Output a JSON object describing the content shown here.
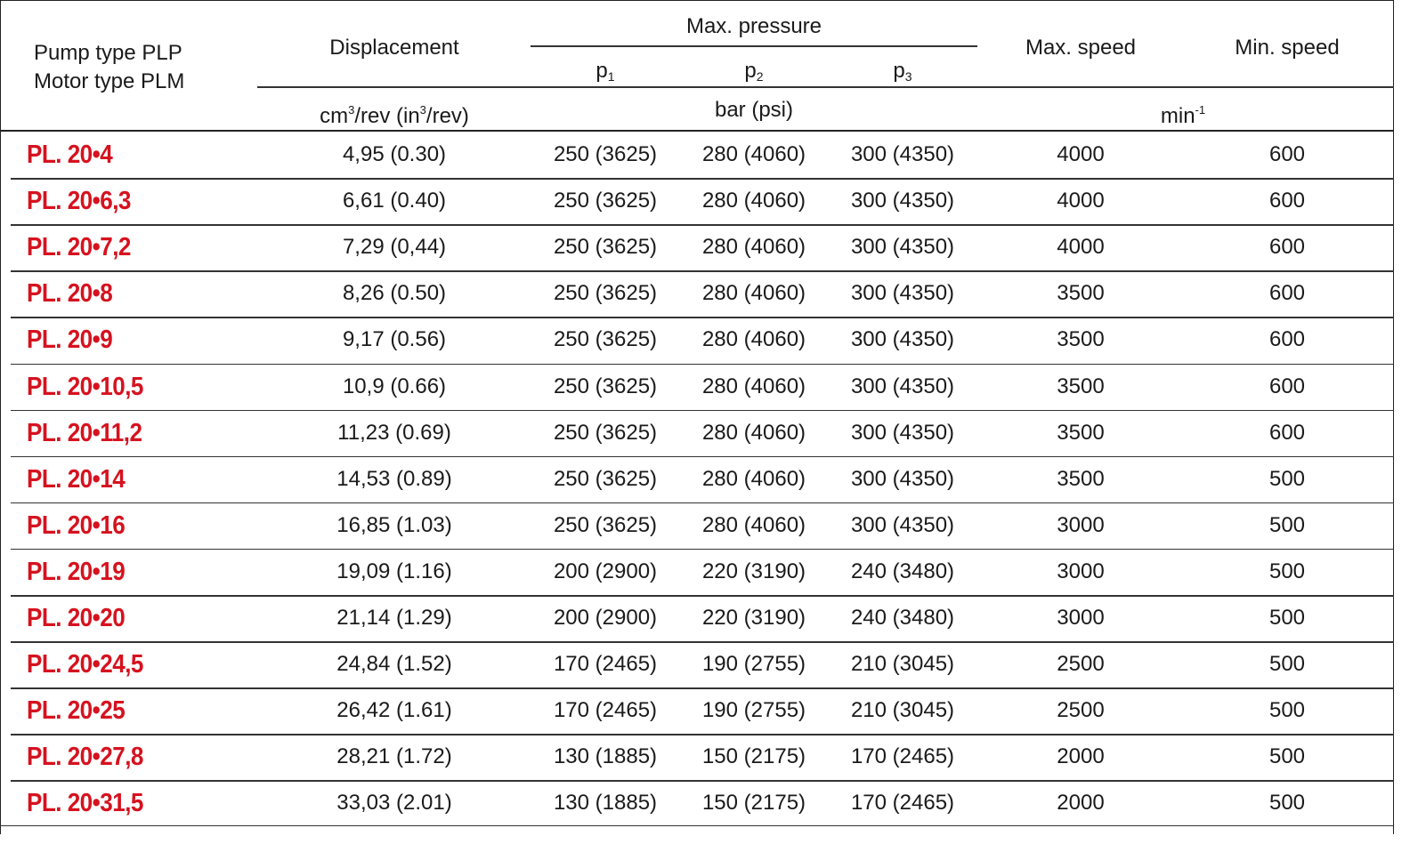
{
  "header": {
    "pump_type": "Pump type PLP",
    "motor_type": "Motor type PLM",
    "displacement": "Displacement",
    "max_pressure": "Max. pressure",
    "p1": "p",
    "p1_sub": "1",
    "p2": "p",
    "p2_sub": "2",
    "p3": "p",
    "p3_sub": "3",
    "max_speed": "Max. speed",
    "min_speed": "Min. speed",
    "unit_displacement_a": "cm",
    "unit_displacement_sup1": "3",
    "unit_displacement_b": "/rev (in",
    "unit_displacement_sup2": "3",
    "unit_displacement_c": "/rev)",
    "unit_pressure": "bar (psi)",
    "unit_speed": "min",
    "unit_speed_sup": "-1"
  },
  "accent_color": "#d6121f",
  "rows": [
    {
      "model": "PL. 20•4",
      "displacement": "4,95 (0.30)",
      "p1": "250 (3625)",
      "p2": "280 (4060)",
      "p3": "300 (4350)",
      "max_speed": "4000",
      "min_speed": "600"
    },
    {
      "model": "PL. 20•6,3",
      "displacement": "6,61 (0.40)",
      "p1": "250 (3625)",
      "p2": "280 (4060)",
      "p3": "300 (4350)",
      "max_speed": "4000",
      "min_speed": "600"
    },
    {
      "model": "PL. 20•7,2",
      "displacement": "7,29 (0,44)",
      "p1": "250 (3625)",
      "p2": "280 (4060)",
      "p3": "300 (4350)",
      "max_speed": "4000",
      "min_speed": "600"
    },
    {
      "model": "PL. 20•8",
      "displacement": "8,26 (0.50)",
      "p1": "250 (3625)",
      "p2": "280 (4060)",
      "p3": "300 (4350)",
      "max_speed": "3500",
      "min_speed": "600"
    },
    {
      "model": "PL. 20•9",
      "displacement": "9,17 (0.56)",
      "p1": "250 (3625)",
      "p2": "280 (4060)",
      "p3": "300 (4350)",
      "max_speed": "3500",
      "min_speed": "600"
    },
    {
      "model": "PL. 20•10,5",
      "displacement": "10,9 (0.66)",
      "p1": "250 (3625)",
      "p2": "280 (4060)",
      "p3": "300 (4350)",
      "max_speed": "3500",
      "min_speed": "600"
    },
    {
      "model": "PL. 20•11,2",
      "displacement": "11,23 (0.69)",
      "p1": "250 (3625)",
      "p2": "280 (4060)",
      "p3": "300 (4350)",
      "max_speed": "3500",
      "min_speed": "600"
    },
    {
      "model": "PL. 20•14",
      "displacement": "14,53 (0.89)",
      "p1": "250 (3625)",
      "p2": "280 (4060)",
      "p3": "300 (4350)",
      "max_speed": "3500",
      "min_speed": "500"
    },
    {
      "model": "PL. 20•16",
      "displacement": "16,85 (1.03)",
      "p1": "250 (3625)",
      "p2": "280 (4060)",
      "p3": "300 (4350)",
      "max_speed": "3000",
      "min_speed": "500"
    },
    {
      "model": "PL. 20•19",
      "displacement": "19,09 (1.16)",
      "p1": "200 (2900)",
      "p2": "220 (3190)",
      "p3": "240 (3480)",
      "max_speed": "3000",
      "min_speed": "500"
    },
    {
      "model": "PL. 20•20",
      "displacement": "21,14 (1.29)",
      "p1": "200 (2900)",
      "p2": "220 (3190)",
      "p3": "240 (3480)",
      "max_speed": "3000",
      "min_speed": "500"
    },
    {
      "model": "PL. 20•24,5",
      "displacement": "24,84 (1.52)",
      "p1": "170 (2465)",
      "p2": "190 (2755)",
      "p3": "210 (3045)",
      "max_speed": "2500",
      "min_speed": "500"
    },
    {
      "model": "PL. 20•25",
      "displacement": "26,42 (1.61)",
      "p1": "170 (2465)",
      "p2": "190 (2755)",
      "p3": "210 (3045)",
      "max_speed": "2500",
      "min_speed": "500"
    },
    {
      "model": "PL. 20•27,8",
      "displacement": "28,21 (1.72)",
      "p1": "130 (1885)",
      "p2": "150 (2175)",
      "p3": "170 (2465)",
      "max_speed": "2000",
      "min_speed": "500"
    },
    {
      "model": "PL. 20•31,5",
      "displacement": "33,03 (2.01)",
      "p1": "130 (1885)",
      "p2": "150 (2175)",
      "p3": "170 (2465)",
      "max_speed": "2000",
      "min_speed": "500"
    }
  ]
}
